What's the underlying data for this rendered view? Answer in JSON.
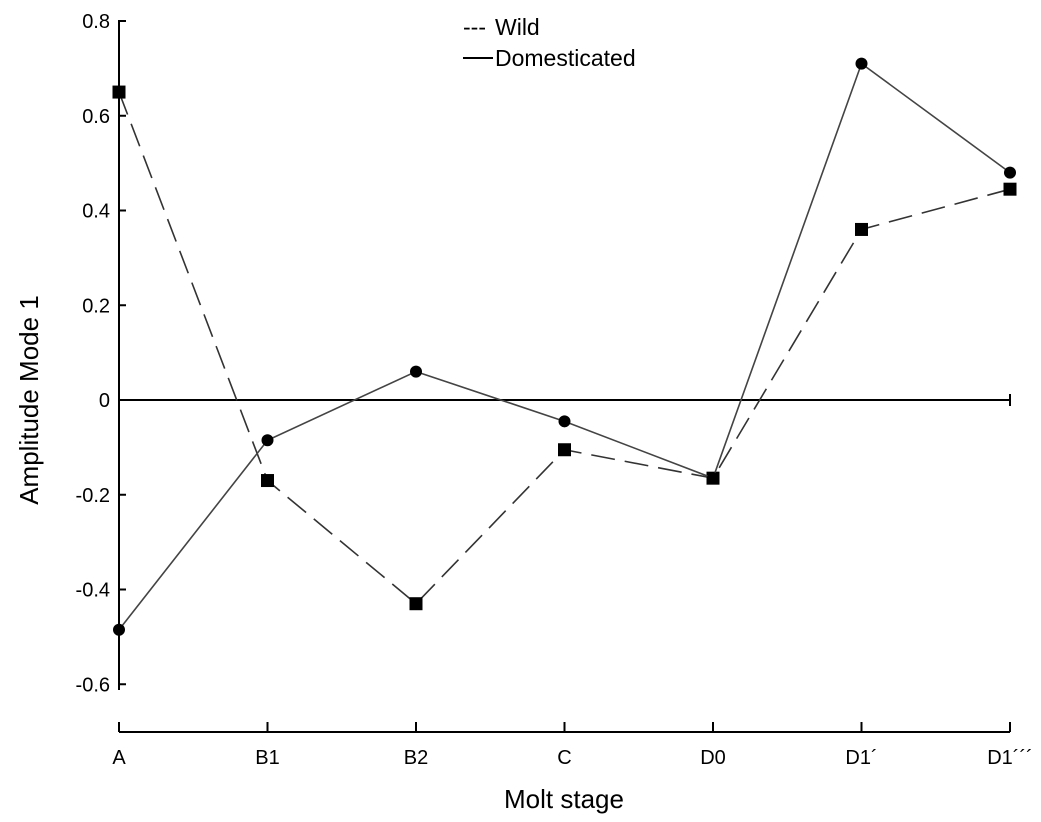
{
  "chart_data": {
    "type": "line",
    "categories": [
      "A",
      "B1",
      "B2",
      "C",
      "D0",
      "D1´",
      "D1´´´"
    ],
    "series": [
      {
        "name": "Wild",
        "style": "dashed",
        "marker": "square",
        "values": [
          0.65,
          -0.17,
          -0.43,
          -0.105,
          -0.165,
          0.36,
          0.445
        ]
      },
      {
        "name": "Domesticated",
        "style": "solid",
        "marker": "circle",
        "values": [
          -0.485,
          -0.085,
          0.06,
          -0.045,
          -0.165,
          0.71,
          0.48
        ]
      }
    ],
    "xlabel": "Molt stage",
    "ylabel": "Amplitude Mode 1",
    "ylim": [
      -0.6,
      0.8
    ],
    "yticks": [
      0.8,
      0.6,
      0.4,
      0.2,
      0,
      -0.2,
      -0.4,
      -0.6
    ],
    "ytick_labels": [
      "0.8",
      "0.6",
      "0.4",
      "0.2",
      "0",
      "-0.2",
      "-0.4",
      "-0.6"
    ],
    "zero_line": true,
    "grid": false,
    "legend": {
      "position": "top-center",
      "entries": [
        {
          "symbol": "---",
          "label": "Wild"
        },
        {
          "symbol": "—",
          "label": "Domesticated"
        }
      ]
    },
    "colors": {
      "line": "#000000",
      "wild_line": "#333333",
      "domesticated_line": "#444444"
    }
  }
}
